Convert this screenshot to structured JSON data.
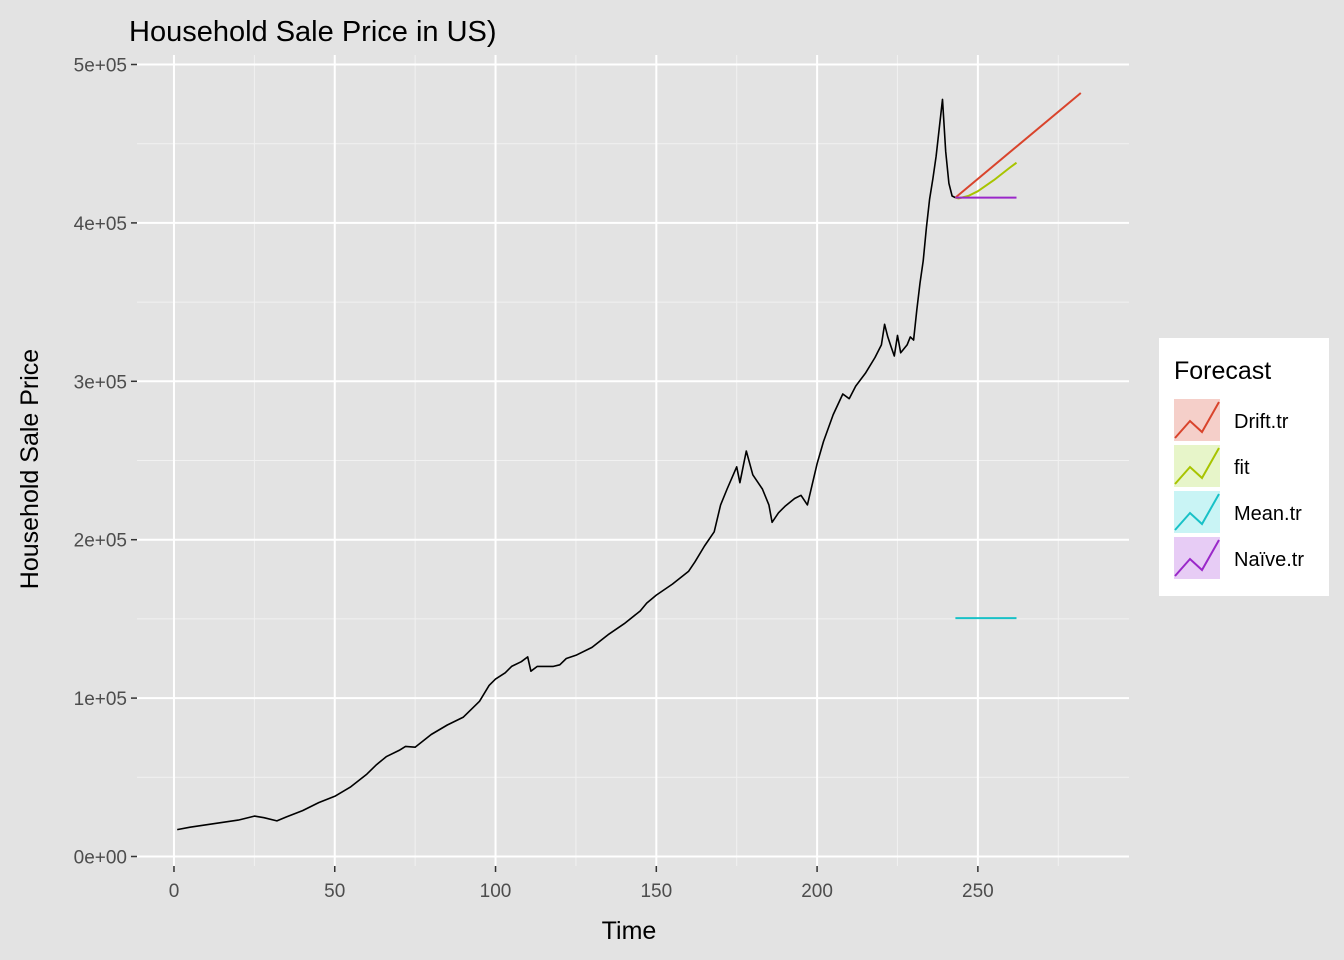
{
  "chart_data": {
    "type": "line",
    "title": "Household Sale Price in US)",
    "xlabel": "Time",
    "ylabel": "Household Sale Price",
    "xlim": [
      -11.5,
      297
    ],
    "ylim": [
      -6000,
      506000
    ],
    "x_ticks": [
      0,
      50,
      100,
      150,
      200,
      250
    ],
    "x_tick_labels": [
      "0",
      "50",
      "100",
      "150",
      "200",
      "250"
    ],
    "y_ticks": [
      0,
      100000,
      200000,
      300000,
      400000,
      500000
    ],
    "y_tick_labels": [
      "0e+00",
      "1e+05",
      "2e+05",
      "3e+05",
      "4e+05",
      "5e+05"
    ],
    "grid": true,
    "legend_position": "right",
    "legend_title": "Forecast",
    "observed": {
      "color": "#000000",
      "x": [
        1,
        5,
        10,
        15,
        20,
        25,
        28,
        32,
        35,
        40,
        45,
        50,
        55,
        60,
        63,
        66,
        70,
        72,
        75,
        80,
        85,
        90,
        95,
        98,
        100,
        103,
        105,
        108,
        110,
        111,
        113,
        118,
        120,
        122,
        125,
        130,
        135,
        140,
        145,
        147,
        150,
        155,
        160,
        162,
        165,
        168,
        170,
        172,
        175,
        176,
        177,
        178,
        180,
        183,
        185,
        186,
        188,
        190,
        193,
        195,
        197,
        200,
        202,
        205,
        208,
        210,
        212,
        215,
        218,
        220,
        221,
        222,
        223,
        224,
        225,
        226,
        228,
        229,
        230,
        231,
        232,
        233,
        234,
        235,
        236,
        237,
        238,
        239,
        240,
        241,
        242,
        243
      ],
      "y": [
        17000,
        18500,
        20000,
        21500,
        23000,
        25500,
        24500,
        22500,
        25000,
        29000,
        34000,
        38000,
        44000,
        52000,
        58000,
        63000,
        67000,
        69500,
        69000,
        77000,
        83000,
        88000,
        98000,
        108000,
        112000,
        116000,
        120000,
        123000,
        126000,
        117000,
        120000,
        120000,
        121000,
        125000,
        127000,
        132000,
        140000,
        147000,
        155000,
        160000,
        165000,
        172000,
        180000,
        186000,
        196000,
        205000,
        222000,
        232000,
        246000,
        236000,
        246000,
        256000,
        241000,
        232000,
        222000,
        211000,
        217000,
        221000,
        226000,
        228000,
        222000,
        248000,
        262000,
        279000,
        292000,
        289000,
        297000,
        305000,
        315000,
        323000,
        336000,
        328000,
        322000,
        316000,
        329000,
        318000,
        323000,
        328000,
        326000,
        345000,
        362000,
        376000,
        397000,
        415000,
        428000,
        442000,
        460000,
        478000,
        445000,
        425000,
        417000,
        416000
      ]
    },
    "series": [
      {
        "name": "Drift.tr",
        "color": "#d9442c",
        "fill": "#f5cfc9",
        "x": [
          243,
          282
        ],
        "y": [
          416000,
          482000
        ]
      },
      {
        "name": "fit",
        "color": "#a8c400",
        "fill": "#e7f5c9",
        "x": [
          243,
          244,
          247,
          250,
          255,
          260,
          262
        ],
        "y": [
          416000,
          415500,
          417000,
          420000,
          427000,
          435000,
          438000
        ]
      },
      {
        "name": "Mean.tr",
        "color": "#18c1c7",
        "fill": "#c9f4f5",
        "x": [
          243,
          262
        ],
        "y": [
          150500,
          150500
        ]
      },
      {
        "name": "Naïve.tr",
        "color": "#9a28c9",
        "fill": "#e7ccf5",
        "x": [
          243,
          262
        ],
        "y": [
          416000,
          416000
        ]
      }
    ]
  }
}
